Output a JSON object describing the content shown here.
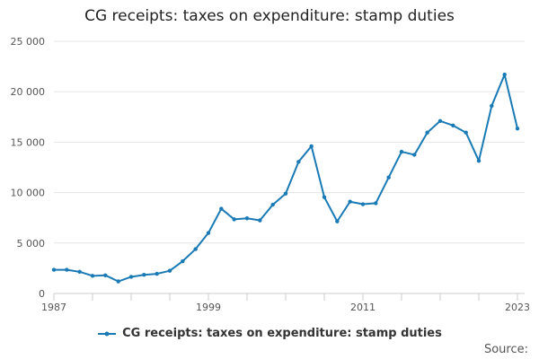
{
  "chart_data": {
    "type": "line",
    "title": "CG receipts: taxes on expenditure: stamp duties",
    "xlabel": "",
    "ylabel": "",
    "x": [
      1987,
      1988,
      1989,
      1990,
      1991,
      1992,
      1993,
      1994,
      1995,
      1996,
      1997,
      1998,
      1999,
      2000,
      2001,
      2002,
      2003,
      2004,
      2005,
      2006,
      2007,
      2008,
      2009,
      2010,
      2011,
      2012,
      2013,
      2014,
      2015,
      2016,
      2017,
      2018,
      2019,
      2020,
      2021,
      2022,
      2023
    ],
    "series": [
      {
        "name": "CG receipts: taxes on expenditure: stamp duties",
        "color": "#1a7ab5",
        "values": [
          2350,
          2350,
          2150,
          1750,
          1800,
          1200,
          1650,
          1850,
          1950,
          2250,
          3200,
          4400,
          6000,
          8400,
          7350,
          7450,
          7250,
          8800,
          9900,
          13050,
          14600,
          9550,
          7150,
          9100,
          8850,
          8950,
          11500,
          14050,
          13750,
          15950,
          17100,
          16650,
          15950,
          13150,
          18600,
          21700,
          16350
        ]
      }
    ],
    "yticks": [
      0,
      5000,
      10000,
      15000,
      20000,
      25000
    ],
    "ytick_labels": [
      "0",
      "5 000",
      "10 000",
      "15 000",
      "20 000",
      "25 000"
    ],
    "xtick_labels": [
      "1987",
      "1999",
      "2011",
      "2023"
    ],
    "xtick_values": [
      1987,
      1999,
      2011,
      2023
    ],
    "ylim": [
      0,
      25000
    ],
    "xlim": [
      1987,
      2023
    ],
    "grid": true,
    "legend": "bottom-center",
    "source_label": "Source:"
  },
  "colors": {
    "line": "#1a7ab5",
    "grid": "#e6e6e6",
    "axis": "#cccccc",
    "tick_text": "#555555"
  }
}
